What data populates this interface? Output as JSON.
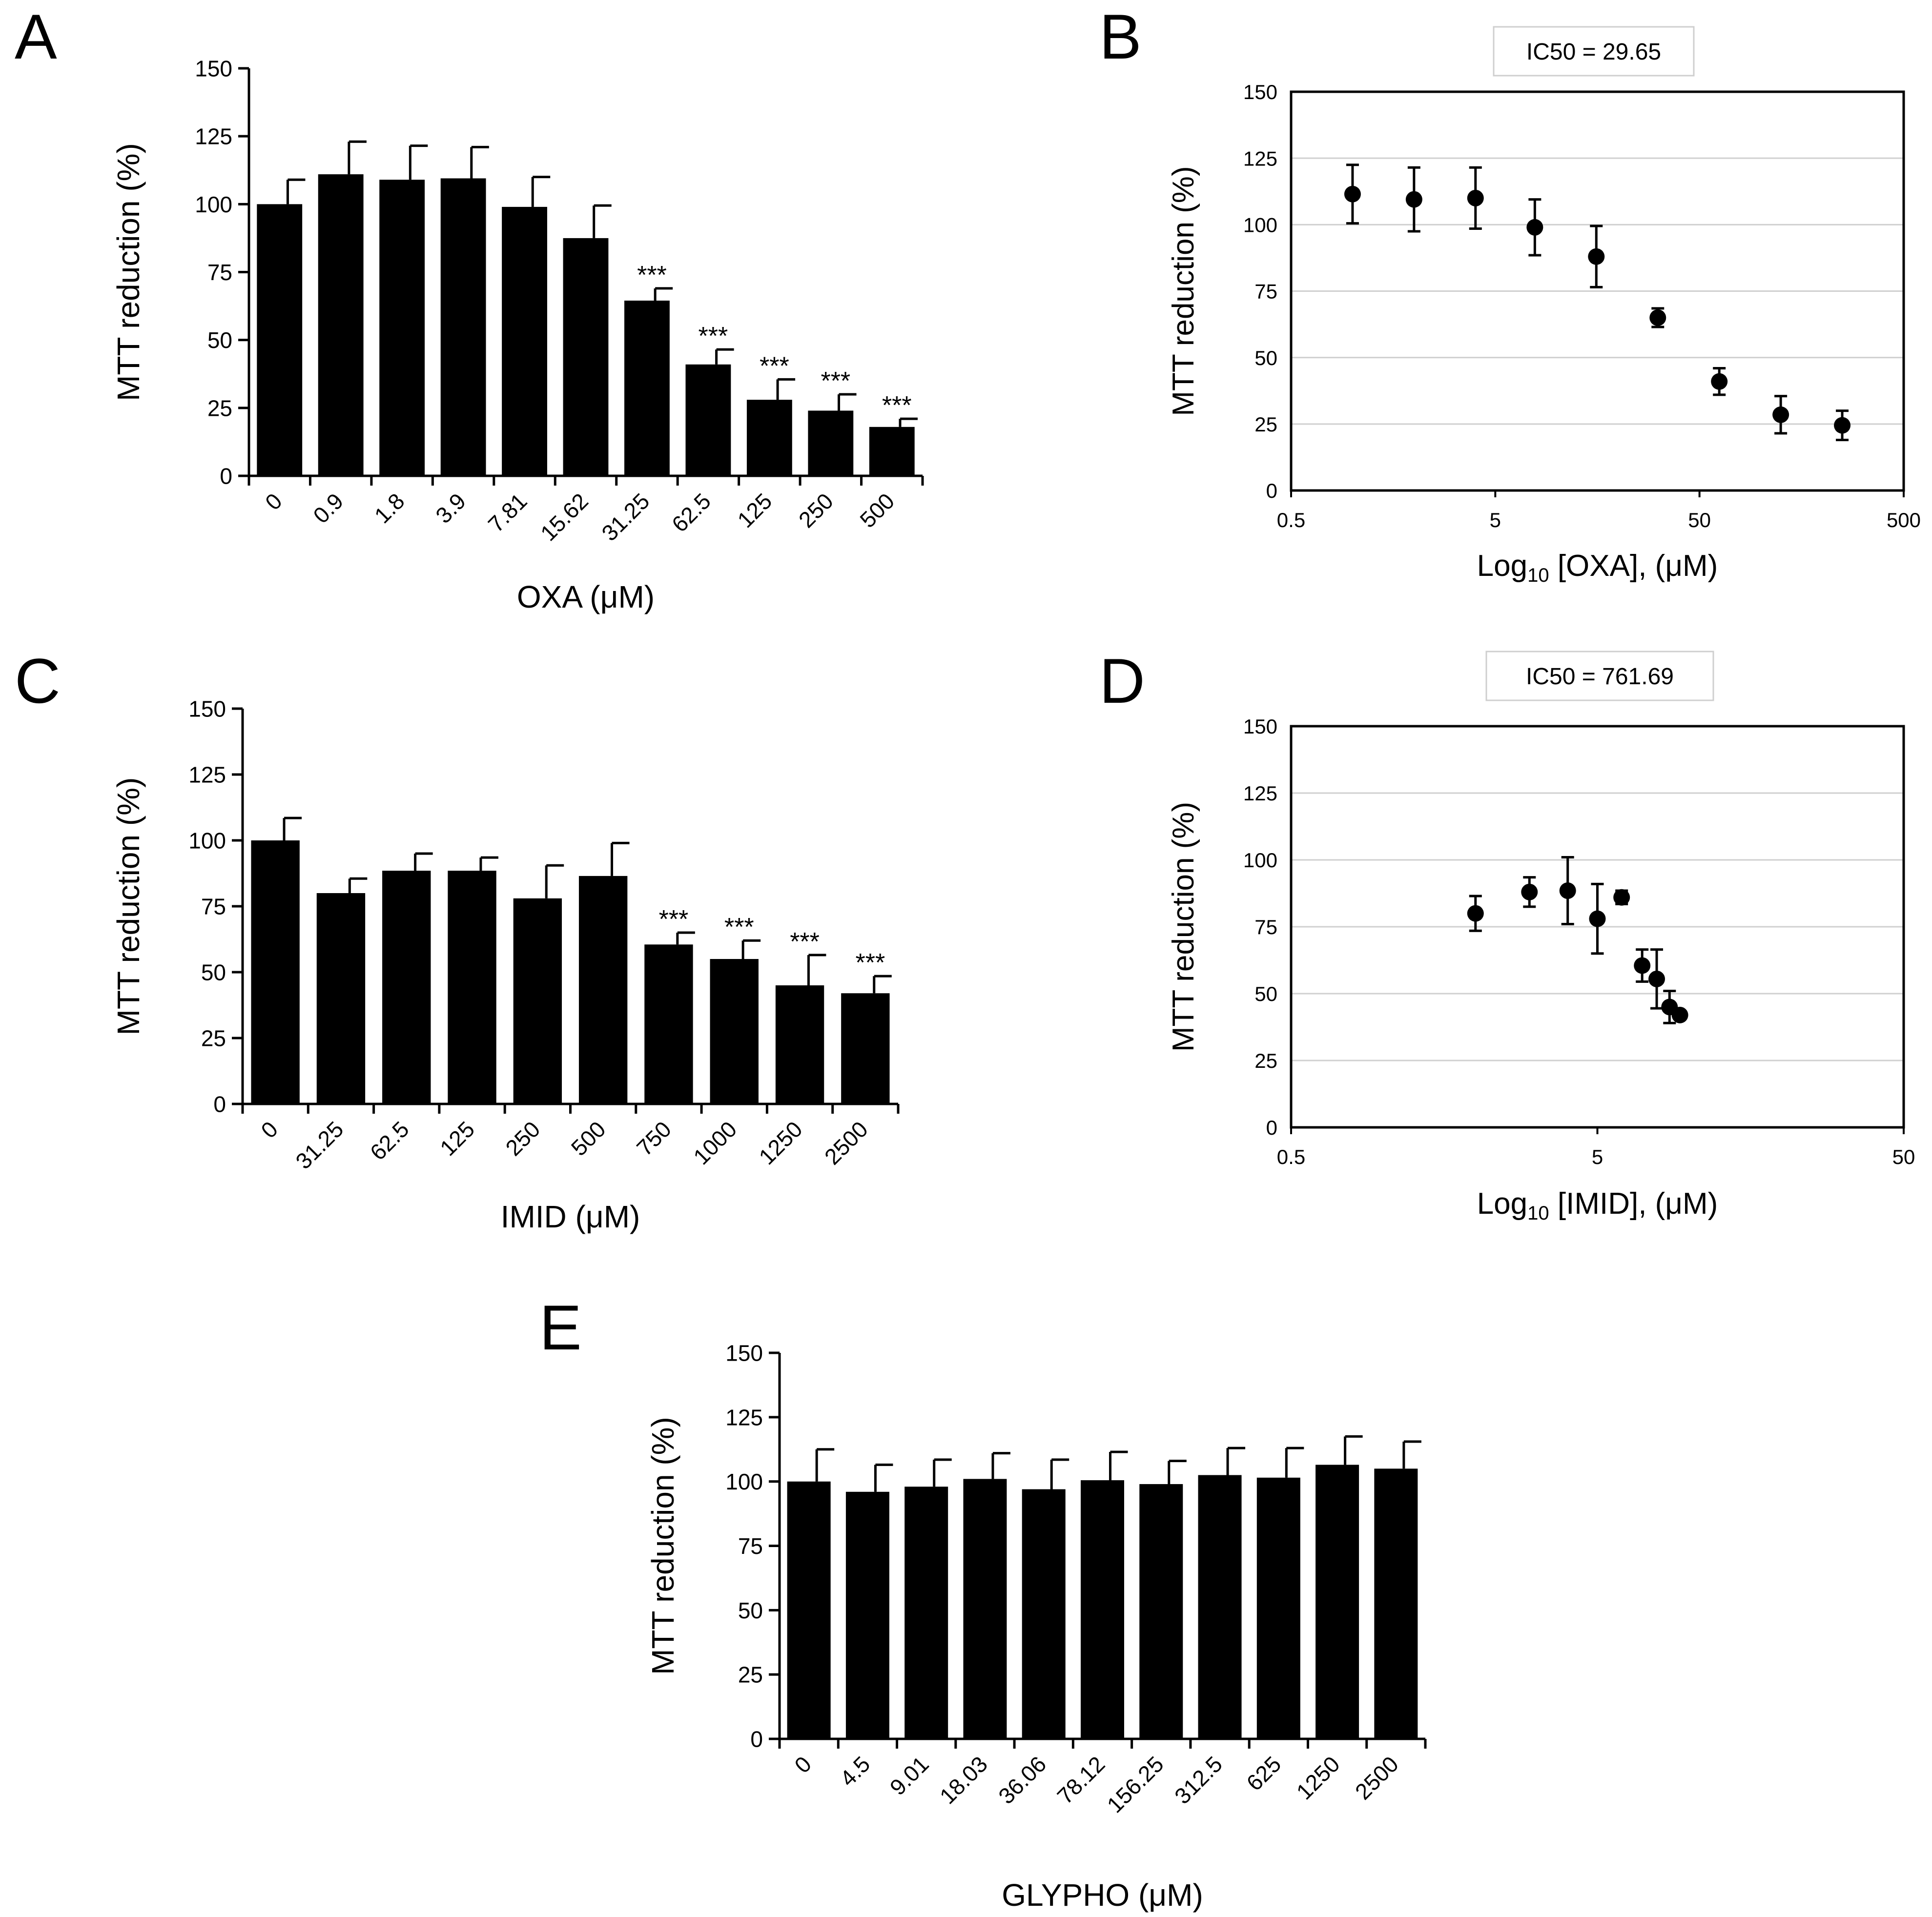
{
  "chart_data": [
    {
      "panel": "A",
      "type": "bar",
      "categories": [
        "0",
        "0.9",
        "1.8",
        "3.9",
        "7.81",
        "15.62",
        "31.25",
        "62.5",
        "125",
        "250",
        "500"
      ],
      "values": [
        100,
        111,
        109,
        109.5,
        99,
        87.5,
        64.5,
        41,
        28,
        24,
        18
      ],
      "errors": [
        9,
        12,
        12.5,
        11.5,
        11,
        12,
        4.5,
        5.5,
        7.5,
        6,
        3
      ],
      "significance": [
        "",
        "",
        "",
        "",
        "",
        "",
        "***",
        "***",
        "***",
        "***",
        "***"
      ],
      "ylabel": "MTT reduction  (%)",
      "xlabel": "OXA (μM)",
      "ylim": [
        0,
        150
      ],
      "yticks": [
        "0",
        "25",
        "50",
        "75",
        "100",
        "125",
        "150"
      ]
    },
    {
      "panel": "B",
      "type": "scatter",
      "x": [
        1,
        2,
        4,
        7.81,
        15.62,
        31.25,
        62.5,
        125,
        250
      ],
      "y": [
        111.5,
        109.5,
        110,
        99,
        88,
        65,
        41,
        28.5,
        24.5
      ],
      "errors": [
        11,
        12,
        11.5,
        10.5,
        11.5,
        3.5,
        5,
        7,
        5.5
      ],
      "annotation": "IC50 = 29.65",
      "ylabel": "MTT reduction  (%)",
      "xlabel_prefix": "Log",
      "xlabel_sub": "10",
      "xlabel_suffix": " [OXA], (μM)",
      "xscale": "log",
      "xlim": [
        0.5,
        500
      ],
      "ylim": [
        0,
        150
      ],
      "xticks": [
        "0.5",
        "5",
        "50",
        "500"
      ],
      "yticks": [
        "0",
        "25",
        "50",
        "75",
        "100",
        "125",
        "150"
      ],
      "grid": true
    },
    {
      "panel": "C",
      "type": "bar",
      "categories": [
        "0",
        "31.25",
        "62.5",
        "125",
        "250",
        "500",
        "750",
        "1000",
        "1250",
        "2500"
      ],
      "values": [
        100,
        80,
        88.5,
        88.5,
        78,
        86.5,
        60.5,
        55,
        45,
        42
      ],
      "errors": [
        8.5,
        5.5,
        6.5,
        5,
        12.5,
        12.5,
        4.5,
        7,
        11.5,
        6.5
      ],
      "significance": [
        "",
        "",
        "",
        "",
        "",
        "",
        "***",
        "***",
        "***",
        "***"
      ],
      "ylabel": "MTT reduction  (%)",
      "xlabel": "IMID (μM)",
      "ylim": [
        0,
        150
      ],
      "yticks": [
        "0",
        "25",
        "50",
        "75",
        "100",
        "125",
        "150"
      ]
    },
    {
      "panel": "D",
      "type": "scatter",
      "x": [
        2,
        3,
        4,
        5,
        6,
        7,
        7.81,
        8.6,
        9.3
      ],
      "y": [
        80,
        88,
        88.5,
        78,
        86,
        60.5,
        55.5,
        45,
        42
      ],
      "errors": [
        6.5,
        5.5,
        12.5,
        13,
        2.5,
        6,
        11,
        6,
        0
      ],
      "annotation": "IC50 = 761.69",
      "ylabel": "MTT reduction  (%)",
      "xlabel_prefix": "Log",
      "xlabel_sub": "10",
      "xlabel_suffix": " [IMID],  (μM)",
      "xscale": "log",
      "xlim": [
        0.5,
        50
      ],
      "ylim": [
        0,
        150
      ],
      "xticks": [
        "0.5",
        "5",
        "50"
      ],
      "yticks": [
        "0",
        "25",
        "50",
        "75",
        "100",
        "125",
        "150"
      ],
      "grid": true
    },
    {
      "panel": "E",
      "type": "bar",
      "categories": [
        "0",
        "4.5",
        "9.01",
        "18.03",
        "36.06",
        "78.12",
        "156.25",
        "312.5",
        "625",
        "1250",
        "2500"
      ],
      "values": [
        100,
        96,
        98,
        101,
        97,
        100.5,
        99,
        102.5,
        101.5,
        106.5,
        105
      ],
      "errors": [
        12.5,
        10.5,
        10.5,
        10,
        11.5,
        11,
        9,
        10.5,
        11.5,
        11,
        10.5
      ],
      "significance": [
        "",
        "",
        "",
        "",
        "",
        "",
        "",
        "",
        "",
        "",
        ""
      ],
      "ylabel": "MTT reduction  (%)",
      "xlabel": "GLYPHO (μM)",
      "ylim": [
        0,
        150
      ],
      "yticks": [
        "0",
        "25",
        "50",
        "75",
        "100",
        "125",
        "150"
      ]
    }
  ]
}
